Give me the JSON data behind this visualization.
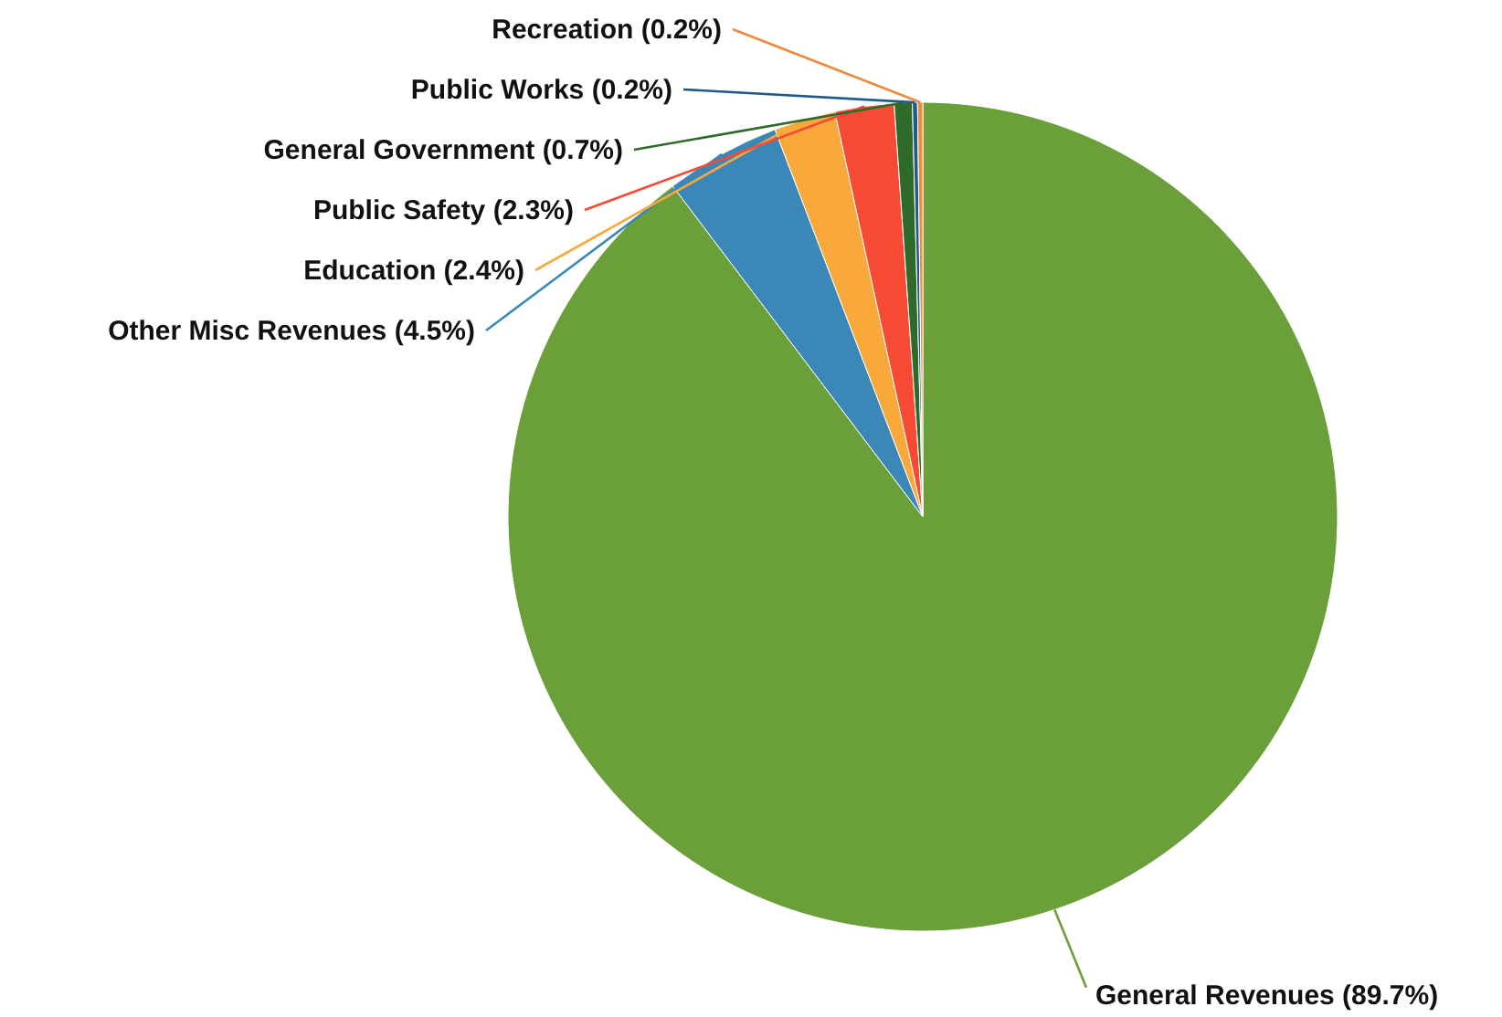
{
  "chart_data": {
    "type": "pie",
    "categories": [
      "General Revenues",
      "Other Misc Revenues",
      "Education",
      "Public Safety",
      "General Government",
      "Public Works",
      "Recreation"
    ],
    "values": [
      89.7,
      4.5,
      2.4,
      2.3,
      0.7,
      0.2,
      0.2
    ],
    "colors": [
      "#6a9f3a",
      "#3a87b8",
      "#f9a93a",
      "#f64a35",
      "#2e6b2a",
      "#1f5a8a",
      "#ee8a3a"
    ],
    "value_labels": [
      "(89.7%)",
      "(4.5%)",
      "(2.4%)",
      "(2.3%)",
      "(0.7%)",
      "(0.2%)",
      "(0.2%)"
    ]
  }
}
